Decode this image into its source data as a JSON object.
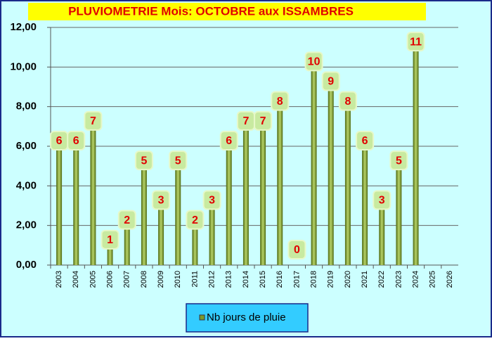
{
  "chart_data": {
    "type": "bar",
    "title": "PLUVIOMETRIE Mois: OCTOBRE aux ISSAMBRES",
    "categories": [
      "2003",
      "2004",
      "2005",
      "2006",
      "2007",
      "2008",
      "2009",
      "2010",
      "2011",
      "2012",
      "2013",
      "2014",
      "2015",
      "2016",
      "2017",
      "2018",
      "2019",
      "2020",
      "2021",
      "2022",
      "2023",
      "2024",
      "2025",
      "2026"
    ],
    "series": [
      {
        "name": "Nb jours de pluie",
        "color": "#7a9a2a",
        "values": [
          6,
          6,
          7,
          1,
          2,
          5,
          3,
          5,
          2,
          3,
          6,
          7,
          7,
          8,
          0,
          10,
          9,
          8,
          6,
          3,
          5,
          11,
          null,
          null
        ]
      }
    ],
    "ylim": [
      0,
      12
    ],
    "yticks": [
      {
        "value": 0,
        "label": "0,00"
      },
      {
        "value": 2,
        "label": "2,00"
      },
      {
        "value": 4,
        "label": "4,00"
      },
      {
        "value": 6,
        "label": "6,00"
      },
      {
        "value": 8,
        "label": "8,00"
      },
      {
        "value": 10,
        "label": "10,00"
      },
      {
        "value": 12,
        "label": "12,00"
      }
    ],
    "grid": true,
    "legend": "bottom"
  }
}
